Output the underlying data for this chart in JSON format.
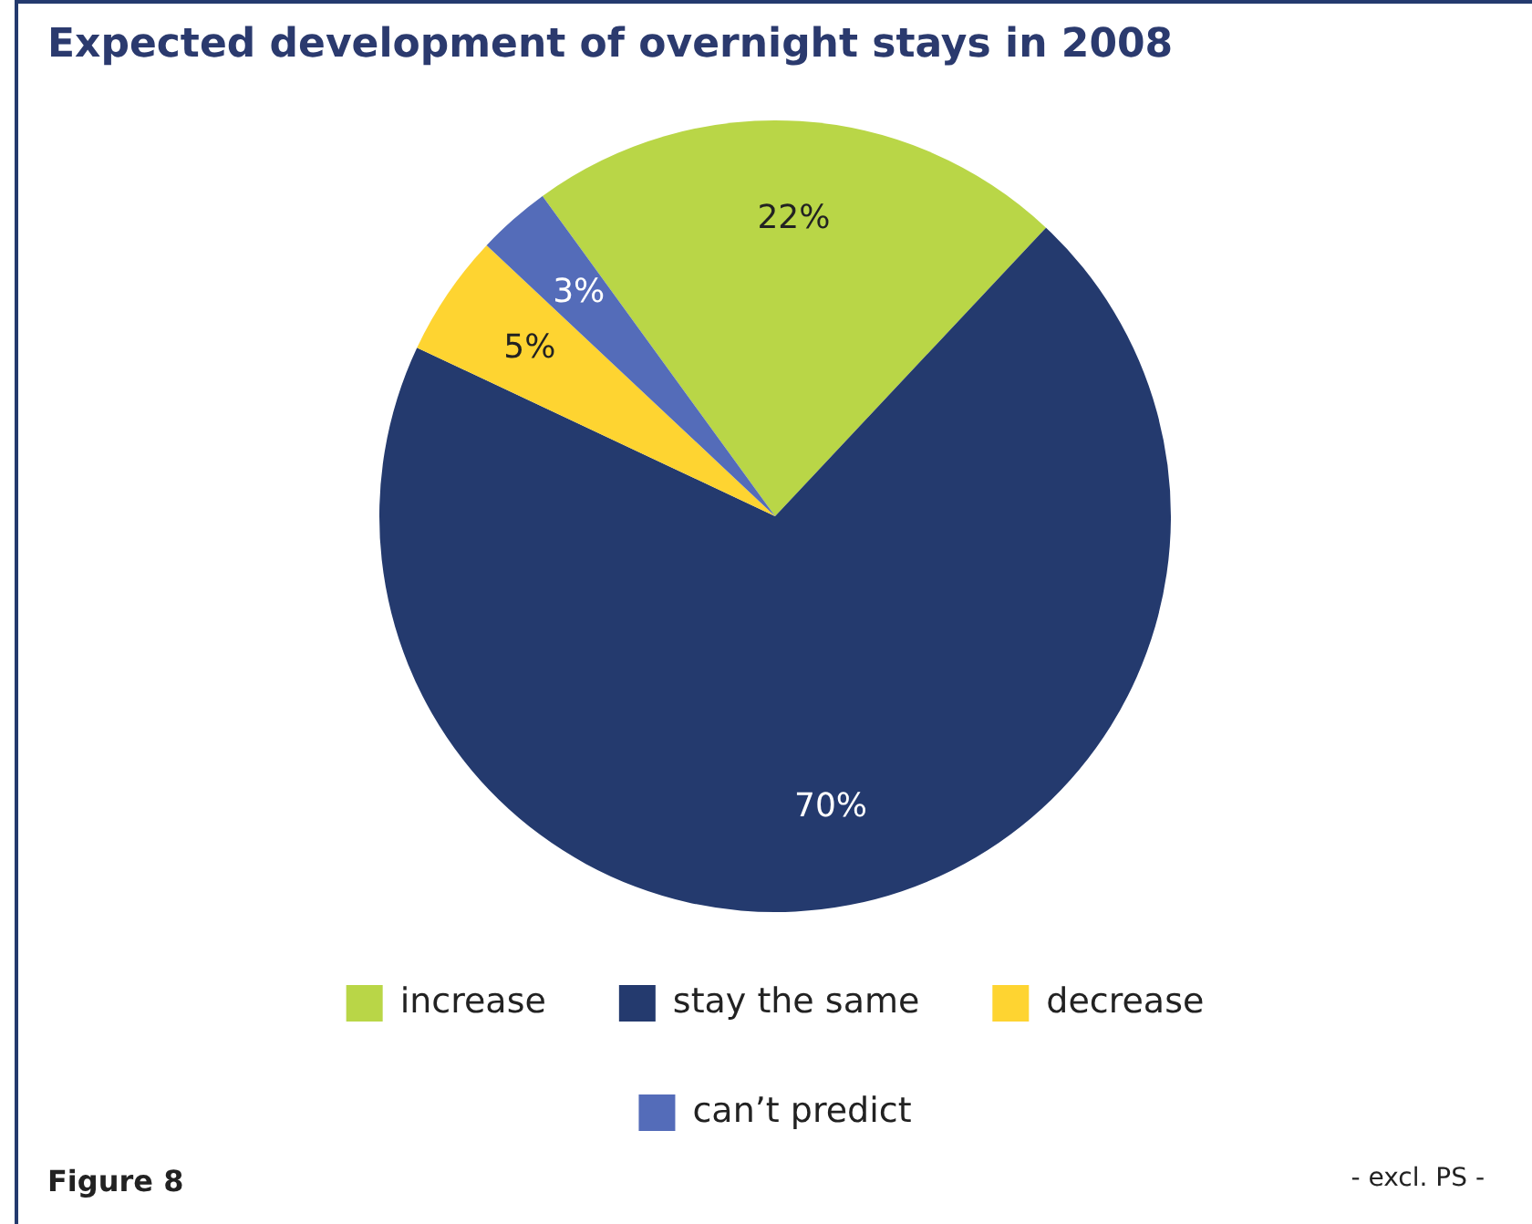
{
  "chart_data": {
    "type": "pie",
    "title": "Expected development of overnight stays in 2008",
    "categories": [
      "increase",
      "stay the same",
      "decrease",
      "can’t predict"
    ],
    "values": [
      22,
      70,
      5,
      3
    ],
    "colors": [
      "#b9d647",
      "#243a6e",
      "#fed431",
      "#546cb9"
    ],
    "value_labels": [
      "22%",
      "70%",
      "5%",
      "3%"
    ],
    "legend": "bottom",
    "annotations": [
      "Figure 8",
      "- excl. PS -"
    ]
  }
}
